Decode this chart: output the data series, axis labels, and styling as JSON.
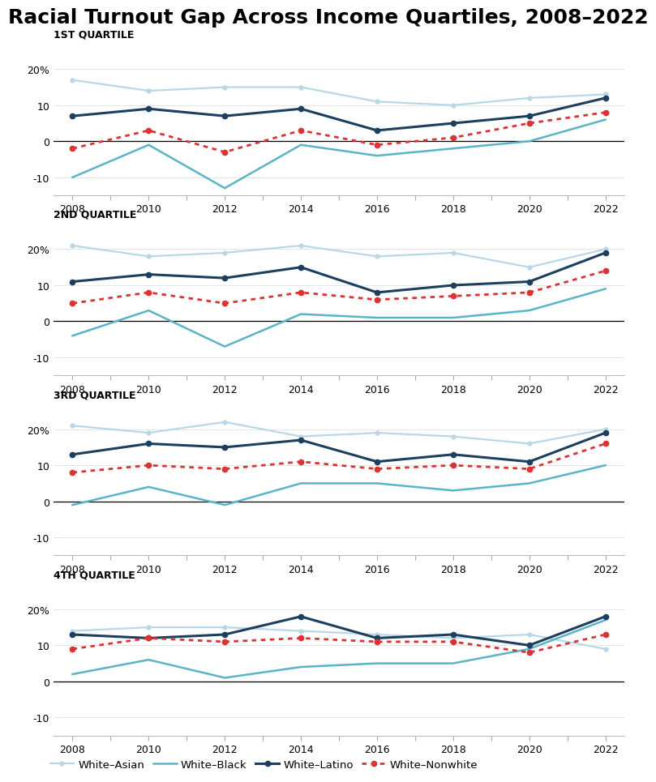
{
  "title": "Racial Turnout Gap Across Income Quartiles, 2008–2022",
  "years": [
    2008,
    2010,
    2012,
    2014,
    2016,
    2018,
    2020,
    2022
  ],
  "all_years": [
    2008,
    2009,
    2010,
    2011,
    2012,
    2013,
    2014,
    2015,
    2016,
    2017,
    2018,
    2019,
    2020,
    2021,
    2022
  ],
  "quartile_labels": [
    "1ST QUARTILE",
    "2ND QUARTILE",
    "3RD QUARTILE",
    "4TH QUARTILE"
  ],
  "series_names": [
    "White–Asian",
    "White–Black",
    "White–Latino",
    "White–Nonwhite"
  ],
  "colors": {
    "White–Asian": "#b8d8e8",
    "White–Black": "#5ab4c8",
    "White–Latino": "#1c3f5e",
    "White–Nonwhite": "#e03030"
  },
  "data": {
    "1ST QUARTILE": {
      "White–Asian": [
        17,
        14,
        15,
        15,
        11,
        10,
        12,
        13
      ],
      "White–Black": [
        -10,
        -1,
        -13,
        -1,
        -4,
        -2,
        0,
        6
      ],
      "White–Latino": [
        7,
        9,
        7,
        9,
        3,
        5,
        7,
        12
      ],
      "White–Nonwhite": [
        -2,
        3,
        -3,
        3,
        -1,
        1,
        5,
        8
      ]
    },
    "2ND QUARTILE": {
      "White–Asian": [
        21,
        18,
        19,
        21,
        18,
        19,
        15,
        20
      ],
      "White–Black": [
        -4,
        3,
        -7,
        2,
        1,
        1,
        3,
        9
      ],
      "White–Latino": [
        11,
        13,
        12,
        15,
        8,
        10,
        11,
        19
      ],
      "White–Nonwhite": [
        5,
        8,
        5,
        8,
        6,
        7,
        8,
        14
      ]
    },
    "3RD QUARTILE": {
      "White–Asian": [
        21,
        19,
        22,
        18,
        19,
        18,
        16,
        20
      ],
      "White–Black": [
        -1,
        4,
        -1,
        5,
        5,
        3,
        5,
        10
      ],
      "White–Latino": [
        13,
        16,
        15,
        17,
        11,
        13,
        11,
        19
      ],
      "White–Nonwhite": [
        8,
        10,
        9,
        11,
        9,
        10,
        9,
        16
      ]
    },
    "4TH QUARTILE": {
      "White–Asian": [
        14,
        15,
        15,
        14,
        13,
        12,
        13,
        9
      ],
      "White–Black": [
        2,
        6,
        1,
        4,
        5,
        5,
        9,
        17
      ],
      "White–Latino": [
        13,
        12,
        13,
        18,
        12,
        13,
        10,
        18
      ],
      "White–Nonwhite": [
        9,
        12,
        11,
        12,
        11,
        11,
        8,
        13
      ]
    }
  },
  "ylim": [
    -15,
    25
  ],
  "yticks": [
    -10,
    0,
    10,
    20
  ],
  "background_color": "#ffffff",
  "title_fontsize": 18,
  "subtitle_fontsize": 9,
  "tick_fontsize": 9,
  "legend_fontsize": 9.5
}
